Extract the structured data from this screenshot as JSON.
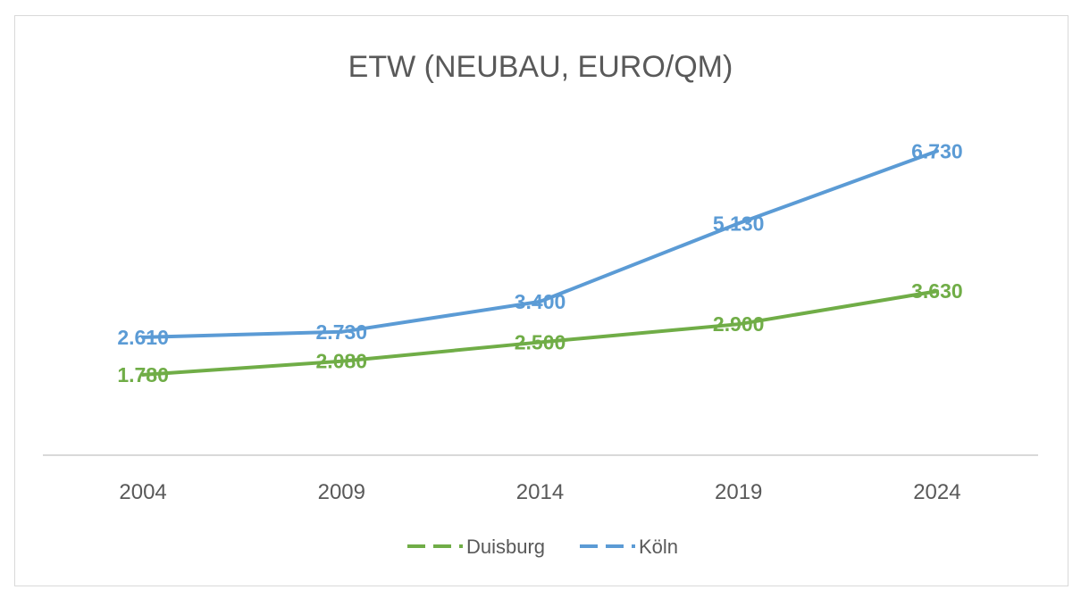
{
  "chart_data": {
    "type": "line",
    "title": "ETW (NEUBAU, EURO/QM)",
    "xlabel": "",
    "ylabel": "",
    "categories": [
      "2004",
      "2009",
      "2014",
      "2019",
      "2024"
    ],
    "ylim": [
      0,
      8000
    ],
    "grid": false,
    "legend": "bottom",
    "series": [
      {
        "name": "Duisburg",
        "color": "#70ad47",
        "values": [
          1780,
          2080,
          2500,
          2900,
          3630
        ],
        "labels": [
          "1.780",
          "2.080",
          "2.500",
          "2.900",
          "3.630"
        ]
      },
      {
        "name": "Köln",
        "color": "#5b9bd5",
        "values": [
          2610,
          2730,
          3400,
          5130,
          6730
        ],
        "labels": [
          "2.610",
          "2.730",
          "3.400",
          "5.130",
          "6.730"
        ]
      }
    ]
  }
}
